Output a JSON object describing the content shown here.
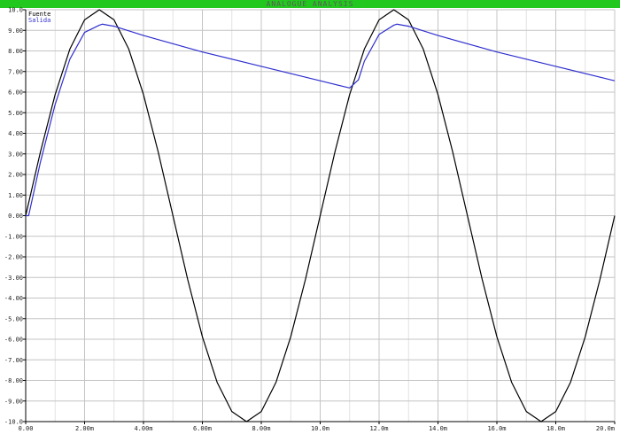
{
  "window": {
    "title": "ANALOGUE ANALYSIS",
    "title_bar_color": "#22c81e"
  },
  "chart_data": {
    "type": "line",
    "title": "ANALOGUE ANALYSIS",
    "xlabel": "",
    "ylabel": "",
    "xlim": [
      0,
      0.02
    ],
    "ylim": [
      -10,
      10
    ],
    "grid": true,
    "legend_position": "top-left",
    "x_tick_labels": [
      "0.00",
      "2.00m",
      "4.00m",
      "6.00m",
      "8.00m",
      "10.0m",
      "12.0m",
      "14.0m",
      "16.0m",
      "18.0m",
      "20.0m"
    ],
    "y_tick_labels": [
      "10.0",
      "9.00",
      "8.00",
      "7.00",
      "6.00",
      "5.00",
      "4.00",
      "3.00",
      "2.00",
      "1.00",
      "0.00",
      "-1.00",
      "-2.00",
      "-3.00",
      "-4.00",
      "-5.00",
      "-6.00",
      "-7.00",
      "-8.00",
      "-9.00",
      "-10.0"
    ],
    "series": [
      {
        "name": "Fuente",
        "color": "#000000",
        "x": [
          0,
          0.0005,
          0.001,
          0.0015,
          0.002,
          0.0025,
          0.003,
          0.0035,
          0.004,
          0.0045,
          0.005,
          0.0055,
          0.006,
          0.0065,
          0.007,
          0.0075,
          0.008,
          0.0085,
          0.009,
          0.0095,
          0.01,
          0.0105,
          0.011,
          0.0115,
          0.012,
          0.0125,
          0.013,
          0.0135,
          0.014,
          0.0145,
          0.015,
          0.0155,
          0.016,
          0.0165,
          0.017,
          0.0175,
          0.018,
          0.0185,
          0.019,
          0.0195,
          0.02
        ],
        "y": [
          0,
          3.09,
          5.88,
          8.09,
          9.51,
          10.0,
          9.51,
          8.09,
          5.88,
          3.09,
          0,
          -3.09,
          -5.88,
          -8.09,
          -9.51,
          -10.0,
          -9.51,
          -8.09,
          -5.88,
          -3.09,
          0,
          3.09,
          5.88,
          8.09,
          9.51,
          10.0,
          9.51,
          8.09,
          5.88,
          3.09,
          0,
          -3.09,
          -5.88,
          -8.09,
          -9.51,
          -10.0,
          -9.51,
          -8.09,
          -5.88,
          -3.09,
          0
        ]
      },
      {
        "name": "Salida",
        "color": "#2f2fd0",
        "x": [
          0,
          0.0001,
          0.0005,
          0.001,
          0.0015,
          0.002,
          0.0025,
          0.0026,
          0.003,
          0.004,
          0.006,
          0.008,
          0.01,
          0.011,
          0.0113,
          0.0115,
          0.012,
          0.0125,
          0.0126,
          0.013,
          0.014,
          0.016,
          0.018,
          0.02
        ],
        "y": [
          0,
          0,
          2.6,
          5.4,
          7.6,
          8.9,
          9.25,
          9.3,
          9.2,
          8.75,
          7.95,
          7.25,
          6.55,
          6.2,
          6.6,
          7.5,
          8.8,
          9.25,
          9.3,
          9.2,
          8.75,
          7.95,
          7.25,
          6.55
        ]
      }
    ]
  }
}
